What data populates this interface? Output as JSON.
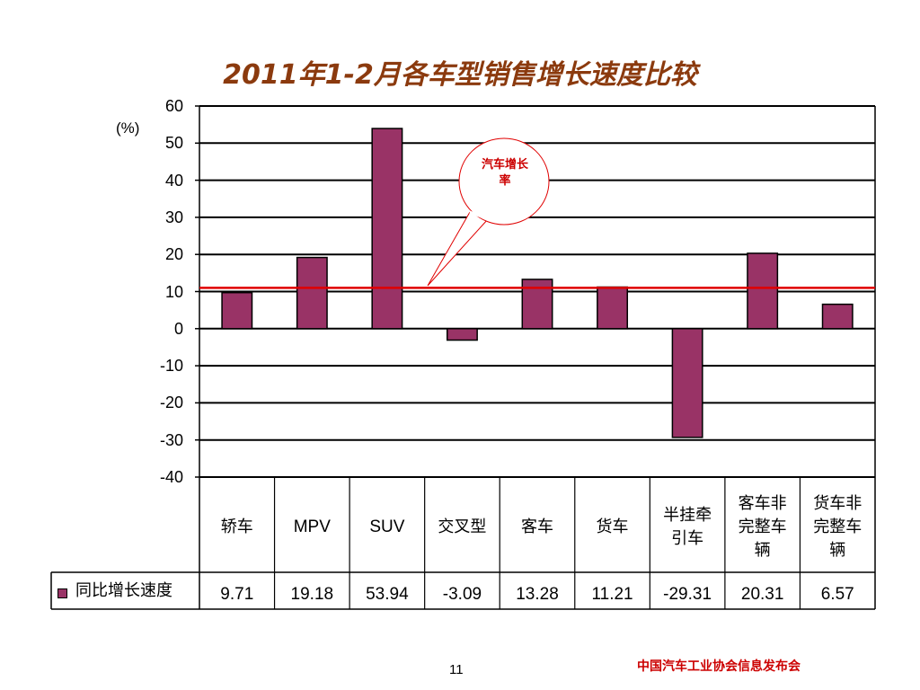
{
  "title": "2011年1-2月各车型销售增长速度比较",
  "unit_label": "(%)",
  "callout_text": "汽车增长率",
  "page_number": "11",
  "organization": "中国汽车工业协会信息发布会",
  "colors": {
    "bar": "#993366",
    "reference_line": "#e00000",
    "title": "#8b3a0e",
    "organization": "#cc0000"
  },
  "chart_data": {
    "type": "bar",
    "categories": [
      "轿车",
      "MPV",
      "SUV",
      "交叉型",
      "客车",
      "货车",
      "半挂牵引车",
      "客车非完整车辆",
      "货车非完整车辆"
    ],
    "series": [
      {
        "name": "同比增长速度",
        "values": [
          9.71,
          19.18,
          53.94,
          -3.09,
          13.28,
          11.21,
          -29.31,
          20.31,
          6.57
        ]
      }
    ],
    "ylim": [
      -40,
      60
    ],
    "yticks": [
      "60",
      "50",
      "40",
      "30",
      "20",
      "10",
      "0",
      "-10",
      "-20",
      "-30",
      "-40"
    ],
    "reference_line": {
      "label": "汽车增长率",
      "value": 11
    },
    "grid": true,
    "legend": "data-table",
    "data_table": [
      "9.71",
      "19.18",
      "53.94",
      "-3.09",
      "13.28",
      "11.21",
      "-29.31",
      "20.31",
      "6.57"
    ]
  }
}
